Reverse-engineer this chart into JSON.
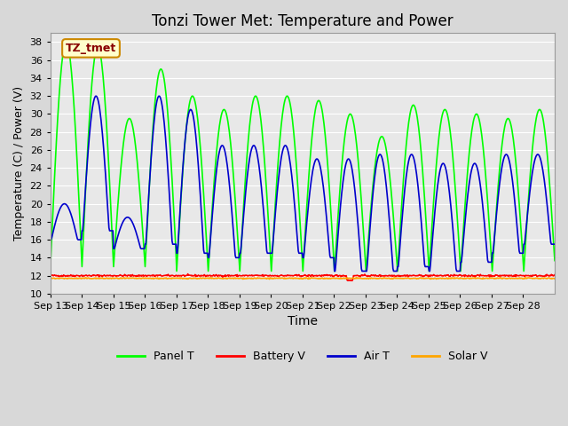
{
  "title": "Tonzi Tower Met: Temperature and Power",
  "xlabel": "Time",
  "ylabel": "Temperature (C) / Power (V)",
  "ylim": [
    10,
    39
  ],
  "yticks": [
    10,
    12,
    14,
    16,
    18,
    20,
    22,
    24,
    26,
    28,
    30,
    32,
    34,
    36,
    38
  ],
  "x_labels": [
    "Sep 13",
    "Sep 14",
    "Sep 15",
    "Sep 16",
    "Sep 17",
    "Sep 18",
    "Sep 19",
    "Sep 20",
    "Sep 21",
    "Sep 22",
    "Sep 23",
    "Sep 24",
    "Sep 25",
    "Sep 26",
    "Sep 27",
    "Sep 28"
  ],
  "panel_color": "#00ff00",
  "battery_color": "#ff0000",
  "air_color": "#0000cc",
  "solar_color": "#ffa500",
  "annotation_text": "TZ_tmet",
  "annotation_bg": "#ffffcc",
  "annotation_border": "#cc8800",
  "annotation_text_color": "#880000",
  "legend_labels": [
    "Panel T",
    "Battery V",
    "Air T",
    "Solar V"
  ],
  "n_days": 16,
  "panel_peaks": [
    38.0,
    37.5,
    29.5,
    35.0,
    32.0,
    30.5,
    32.0,
    32.0,
    31.5,
    30.0,
    27.5,
    31.0,
    30.5,
    30.0,
    29.5,
    30.5
  ],
  "panel_troughs": [
    13.0,
    13.0,
    13.0,
    13.0,
    12.5,
    12.5,
    12.5,
    12.5,
    12.5,
    12.5,
    12.5,
    12.5,
    12.5,
    12.5,
    12.5,
    12.5
  ],
  "air_peaks": [
    20.0,
    32.0,
    18.5,
    32.0,
    30.5,
    26.5,
    26.5,
    26.5,
    25.0,
    25.0,
    25.5,
    25.5,
    24.5,
    24.5,
    25.5,
    25.5
  ],
  "air_troughs": [
    16.0,
    17.0,
    15.0,
    15.5,
    14.5,
    14.0,
    14.5,
    14.5,
    14.0,
    12.5,
    12.5,
    13.0,
    12.5,
    13.5,
    14.5,
    15.5
  ],
  "battery_level": 12.0,
  "solar_level": 11.7
}
